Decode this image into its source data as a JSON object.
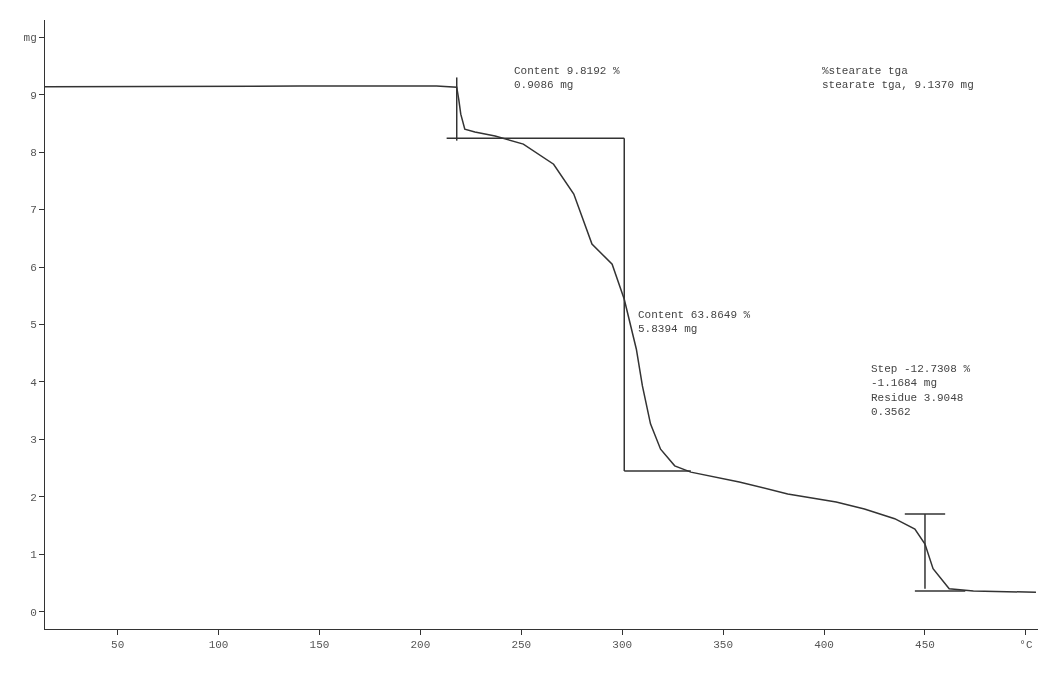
{
  "chart_data": {
    "type": "line",
    "x": [
      14,
      140,
      208,
      218,
      219,
      220,
      222,
      227,
      237,
      251,
      266,
      276,
      285,
      295,
      301,
      307,
      310,
      314,
      319,
      326,
      334,
      358,
      382,
      406,
      420,
      435,
      445,
      450,
      454,
      462,
      474,
      505
    ],
    "series": [
      {
        "color": "#333333",
        "values": [
          9.14,
          9.15,
          9.15,
          9.13,
          8.92,
          8.66,
          8.4,
          8.35,
          8.28,
          8.14,
          7.79,
          7.27,
          6.4,
          6.05,
          5.44,
          4.57,
          3.93,
          3.27,
          2.83,
          2.54,
          2.43,
          2.26,
          2.05,
          1.91,
          1.79,
          1.62,
          1.44,
          1.18,
          0.75,
          0.4,
          0.36,
          0.34
        ]
      },
      {
        "color": "#333333",
        "x": [
          218,
          218
        ],
        "values": [
          8.2,
          9.3
        ]
      },
      {
        "color": "#333333",
        "x": [
          213,
          301
        ],
        "values": [
          8.24,
          8.24
        ]
      },
      {
        "color": "#333333",
        "x": [
          301,
          301
        ],
        "values": [
          2.45,
          8.24
        ]
      },
      {
        "color": "#333333",
        "x": [
          301,
          334
        ],
        "values": [
          2.45,
          2.45
        ]
      },
      {
        "color": "#333333",
        "x": [
          450,
          450
        ],
        "values": [
          0.4,
          1.7
        ]
      },
      {
        "color": "#333333",
        "x": [
          440,
          460
        ],
        "values": [
          1.7,
          1.7
        ]
      },
      {
        "color": "#333333",
        "x": [
          445,
          470
        ],
        "values": [
          0.36,
          0.36
        ]
      }
    ],
    "xlim": [
      14,
      506
    ],
    "xticks": [
      50,
      100,
      150,
      200,
      250,
      300,
      350,
      400,
      450,
      {
        "value": 500,
        "label": "°C"
      }
    ],
    "ylim": [
      -0.3,
      10.3
    ],
    "yticks": [
      0,
      1,
      2,
      3,
      4,
      5,
      6,
      7,
      8,
      9,
      {
        "value": 10,
        "label": "mg"
      }
    ],
    "annotations": [
      "Content 9.8192 %\n0.9086 mg",
      {
        "text": "Content 63.8649 %\n5.8394 mg",
        "x": 303,
        "y": 5.3
      },
      "Step -12.7308 %\n-1.1684 mg\nResidue 3.9048\n0.3562",
      "%stearate tga\nstearate tga, 9.1370 mg"
    ]
  }
}
